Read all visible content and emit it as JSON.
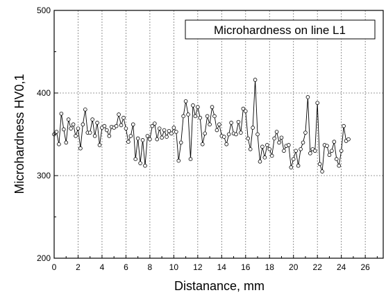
{
  "chart_data": {
    "type": "line",
    "title": "",
    "xlabel": "Distanance, mm",
    "ylabel": "Microhardness HV0,1",
    "xlim": [
      0,
      27.5
    ],
    "ylim": [
      200,
      500
    ],
    "x_ticks": [
      "0",
      "2",
      "4",
      "6",
      "8",
      "10",
      "12",
      "14",
      "16",
      "18",
      "20",
      "22",
      "24",
      "26"
    ],
    "y_ticks": [
      "200",
      "300",
      "400",
      "500"
    ],
    "grid": true,
    "legend_position": "top-right",
    "line_color": "#000000",
    "marker": "open-circle",
    "series": [
      {
        "name": "Microhardness on line L1",
        "x": [
          0.0,
          0.2,
          0.4,
          0.6,
          0.8,
          1.0,
          1.2,
          1.4,
          1.6,
          1.8,
          2.0,
          2.2,
          2.4,
          2.6,
          2.8,
          3.0,
          3.2,
          3.4,
          3.6,
          3.8,
          4.0,
          4.2,
          4.4,
          4.6,
          4.8,
          5.0,
          5.2,
          5.4,
          5.6,
          5.8,
          6.0,
          6.2,
          6.4,
          6.6,
          6.8,
          7.0,
          7.2,
          7.4,
          7.6,
          7.8,
          8.0,
          8.2,
          8.4,
          8.6,
          8.8,
          9.0,
          9.2,
          9.4,
          9.6,
          9.8,
          10.0,
          10.2,
          10.4,
          10.6,
          10.8,
          11.0,
          11.2,
          11.4,
          11.6,
          11.8,
          12.0,
          12.2,
          12.4,
          12.6,
          12.8,
          13.0,
          13.2,
          13.4,
          13.6,
          13.8,
          14.0,
          14.2,
          14.4,
          14.6,
          14.8,
          15.0,
          15.2,
          15.4,
          15.6,
          15.8,
          16.0,
          16.2,
          16.4,
          16.6,
          16.8,
          17.0,
          17.2,
          17.4,
          17.6,
          17.8,
          18.0,
          18.2,
          18.4,
          18.6,
          18.8,
          19.0,
          19.2,
          19.4,
          19.6,
          19.8,
          20.0,
          20.2,
          20.4,
          20.6,
          20.8,
          21.0,
          21.2,
          21.4,
          21.6,
          21.8,
          22.0,
          22.2,
          22.4,
          22.6,
          22.8,
          23.0,
          23.2,
          23.4,
          23.6,
          23.8,
          24.0,
          24.2,
          24.4,
          24.6
        ],
        "values": [
          350,
          353,
          338,
          375,
          356,
          340,
          368,
          357,
          362,
          348,
          357,
          333,
          362,
          380,
          352,
          352,
          368,
          348,
          364,
          337,
          358,
          360,
          355,
          348,
          359,
          358,
          360,
          374,
          361,
          370,
          357,
          341,
          348,
          362,
          320,
          345,
          315,
          343,
          312,
          348,
          344,
          360,
          363,
          344,
          357,
          346,
          355,
          347,
          354,
          351,
          358,
          353,
          318,
          340,
          372,
          390,
          374,
          320,
          385,
          372,
          383,
          370,
          338,
          351,
          372,
          362,
          383,
          372,
          355,
          362,
          348,
          347,
          338,
          350,
          364,
          351,
          350,
          365,
          352,
          381,
          378,
          345,
          332,
          358,
          416,
          350,
          317,
          335,
          322,
          337,
          332,
          324,
          345,
          353,
          340,
          346,
          330,
          336,
          337,
          310,
          320,
          330,
          312,
          332,
          340,
          352,
          395,
          327,
          332,
          330,
          388,
          314,
          305,
          337,
          336,
          325,
          330,
          341,
          320,
          312,
          330,
          360,
          342,
          344
        ]
      }
    ]
  }
}
